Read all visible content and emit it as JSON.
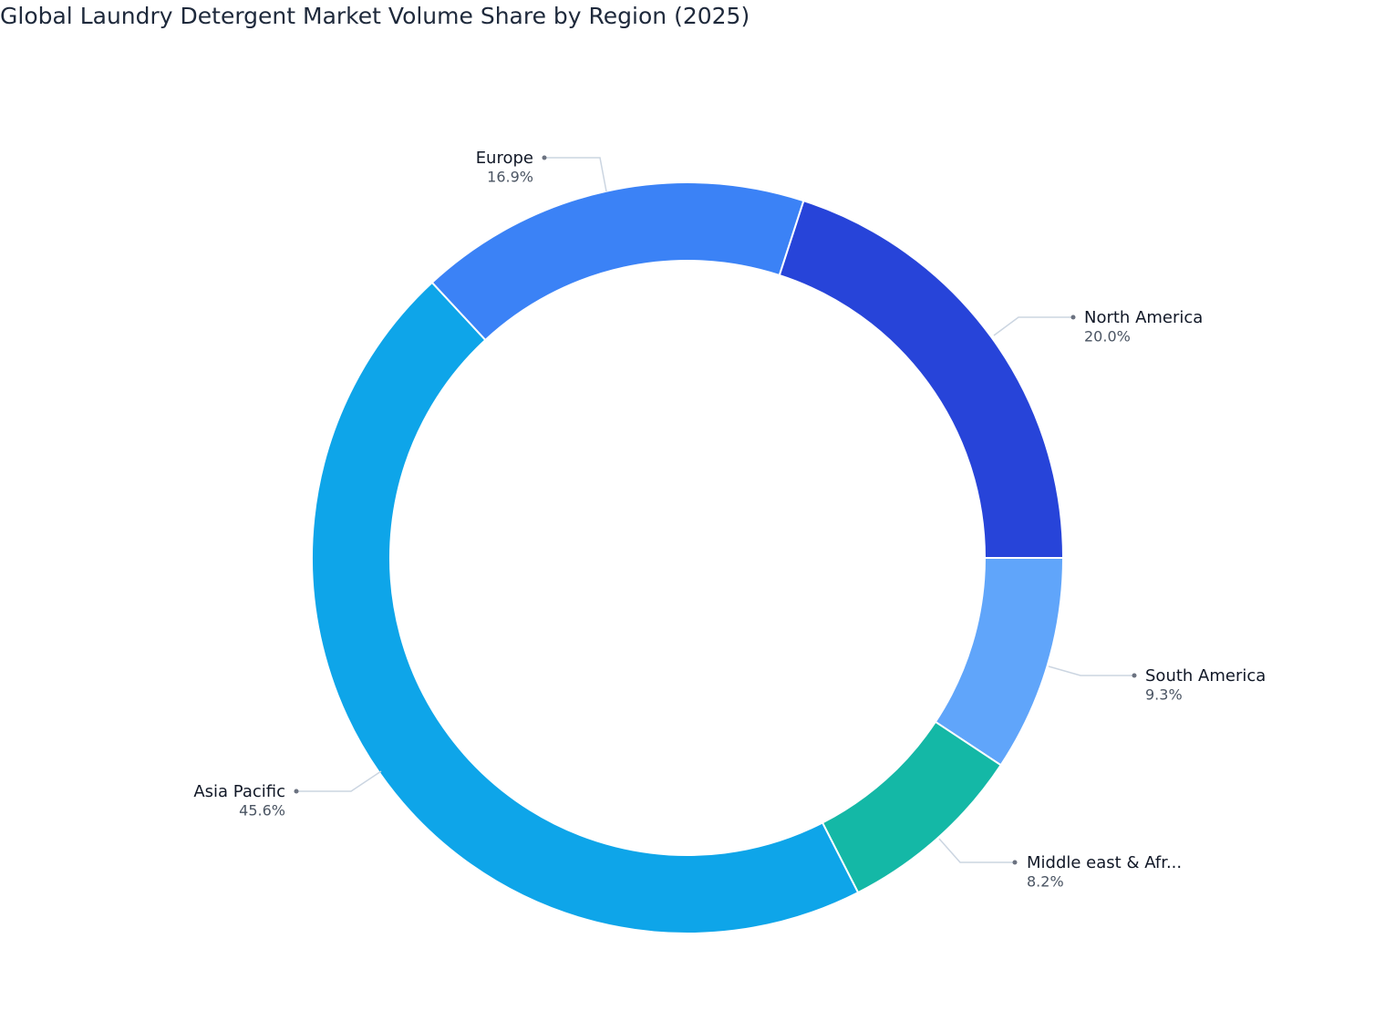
{
  "chart_data": {
    "type": "donut",
    "title": "Global Laundry Detergent Market Volume Share by Region (2025)",
    "categories": [
      "North America",
      "South America",
      "Middle east & Afr...",
      "Asia Pacific",
      "Europe"
    ],
    "values": [
      20.0,
      9.3,
      8.2,
      45.6,
      16.9
    ],
    "value_labels": [
      "20.0%",
      "9.3%",
      "8.2%",
      "45.6%",
      "16.9%"
    ],
    "colors": [
      "#2744d9",
      "#60a5fa",
      "#14b8a6",
      "#0ea5e9",
      "#3b82f6"
    ]
  }
}
